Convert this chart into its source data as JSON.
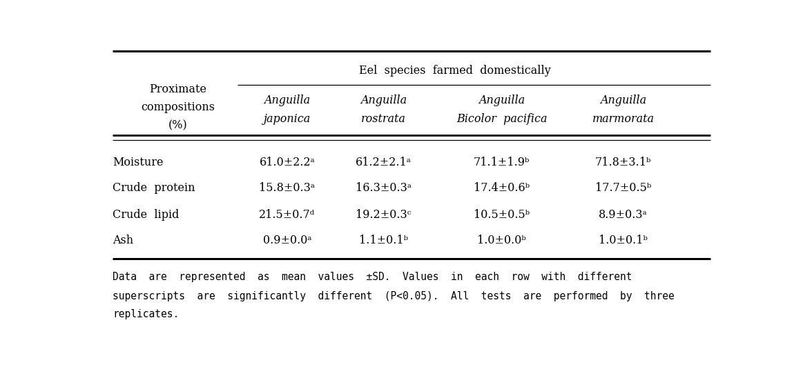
{
  "title": "Eel  species  farmed  domestically",
  "col_header_line1": [
    "Anguilla",
    "Anguilla",
    "Anguilla",
    "Anguilla"
  ],
  "col_header_line2": [
    "japonica",
    "rostrata",
    "Bicolor  pacifica",
    "marmorata"
  ],
  "row_labels": [
    "Moisture",
    "Crude  protein",
    "Crude  lipid",
    "Ash"
  ],
  "data": [
    [
      "61.0±2.2ᵃ",
      "61.2±2.1ᵃ",
      "71.1±1.9ᵇ",
      "71.8±3.1ᵇ"
    ],
    [
      "15.8±0.3ᵃ",
      "16.3±0.3ᵃ",
      "17.4±0.6ᵇ",
      "17.7±0.5ᵇ"
    ],
    [
      "21.5±0.7ᵈ",
      "19.2±0.3ᶜ",
      "10.5±0.5ᵇ",
      "8.9±0.3ᵃ"
    ],
    [
      "0.9±0.0ᵃ",
      "1.1±0.1ᵇ",
      "1.0±0.0ᵇ",
      "1.0±0.1ᵇ"
    ]
  ],
  "footnote_line1": "Data  are  represented  as  mean  values  ±SD.  Values  in  each  row  with  different",
  "footnote_line2": "superscripts  are  significantly  different  (P<0.05).  All  tests  are  performed  by  three",
  "footnote_line3": "replicates.",
  "bg_color": "#ffffff",
  "text_color": "#000000",
  "font_size": 11.5,
  "fn_font_size": 10.5,
  "prox_label": "Proximate\ncompositions\n(%)"
}
